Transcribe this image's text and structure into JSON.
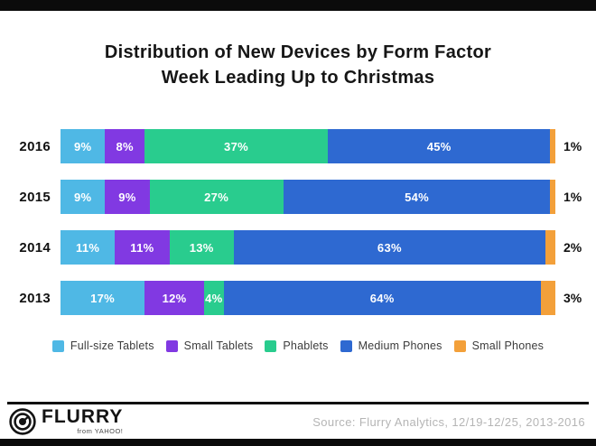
{
  "header": {
    "title_line1": "Distribution of New Devices by Form Factor",
    "title_line2": "Week Leading Up to Christmas"
  },
  "chart_data": {
    "type": "bar",
    "stacked": true,
    "orientation": "horizontal",
    "title": "Distribution of New Devices by Form Factor Week Leading Up to Christmas",
    "categories": [
      "2016",
      "2015",
      "2014",
      "2013"
    ],
    "series": [
      {
        "name": "Full-size Tablets",
        "color": "#4FB8E5",
        "values": [
          9,
          9,
          11,
          17
        ]
      },
      {
        "name": "Small Tablets",
        "color": "#8139E2",
        "values": [
          8,
          9,
          11,
          12
        ]
      },
      {
        "name": "Phablets",
        "color": "#29CC8E",
        "values": [
          37,
          27,
          13,
          4
        ]
      },
      {
        "name": "Medium Phones",
        "color": "#2E69D1",
        "values": [
          45,
          54,
          63,
          64
        ]
      },
      {
        "name": "Small Phones",
        "color": "#F3A03A",
        "values": [
          1,
          1,
          2,
          3
        ],
        "labels_outside": true
      }
    ],
    "value_suffix": "%",
    "xlim": [
      0,
      100
    ],
    "grid": false,
    "legend_position": "bottom"
  },
  "footer": {
    "logo": {
      "brand": "FLURRY",
      "sub_brand": "from YAHOO!",
      "icon": "flurry-target-icon"
    },
    "source": "Source: Flurry Analytics, 12/19-12/25, 2013-2016"
  }
}
